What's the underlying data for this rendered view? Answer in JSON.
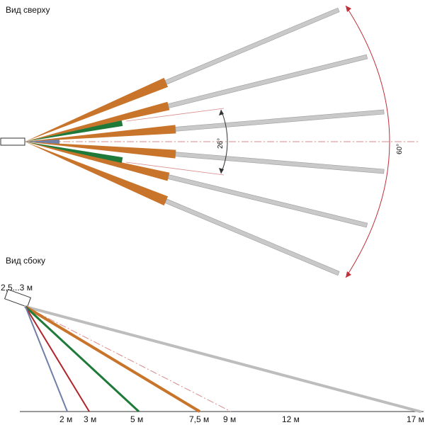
{
  "top_view": {
    "title": "Вид сверху",
    "angle_inner": "26°",
    "angle_outer": "60°"
  },
  "side_view": {
    "title": "Вид сбоку",
    "height_label": "2,5...3 м",
    "distances": [
      "2 м",
      "3 м",
      "5 м",
      "7,5 м",
      "9 м",
      "12 м",
      "17 м"
    ]
  },
  "colors": {
    "orange": "#c8742a",
    "green": "#1f7a3a",
    "gray": "#b8b8b8",
    "blue": "#6f7fa8",
    "red": "#b0242a",
    "dashdot": "#d98a8a",
    "arc": "#c0303a"
  }
}
